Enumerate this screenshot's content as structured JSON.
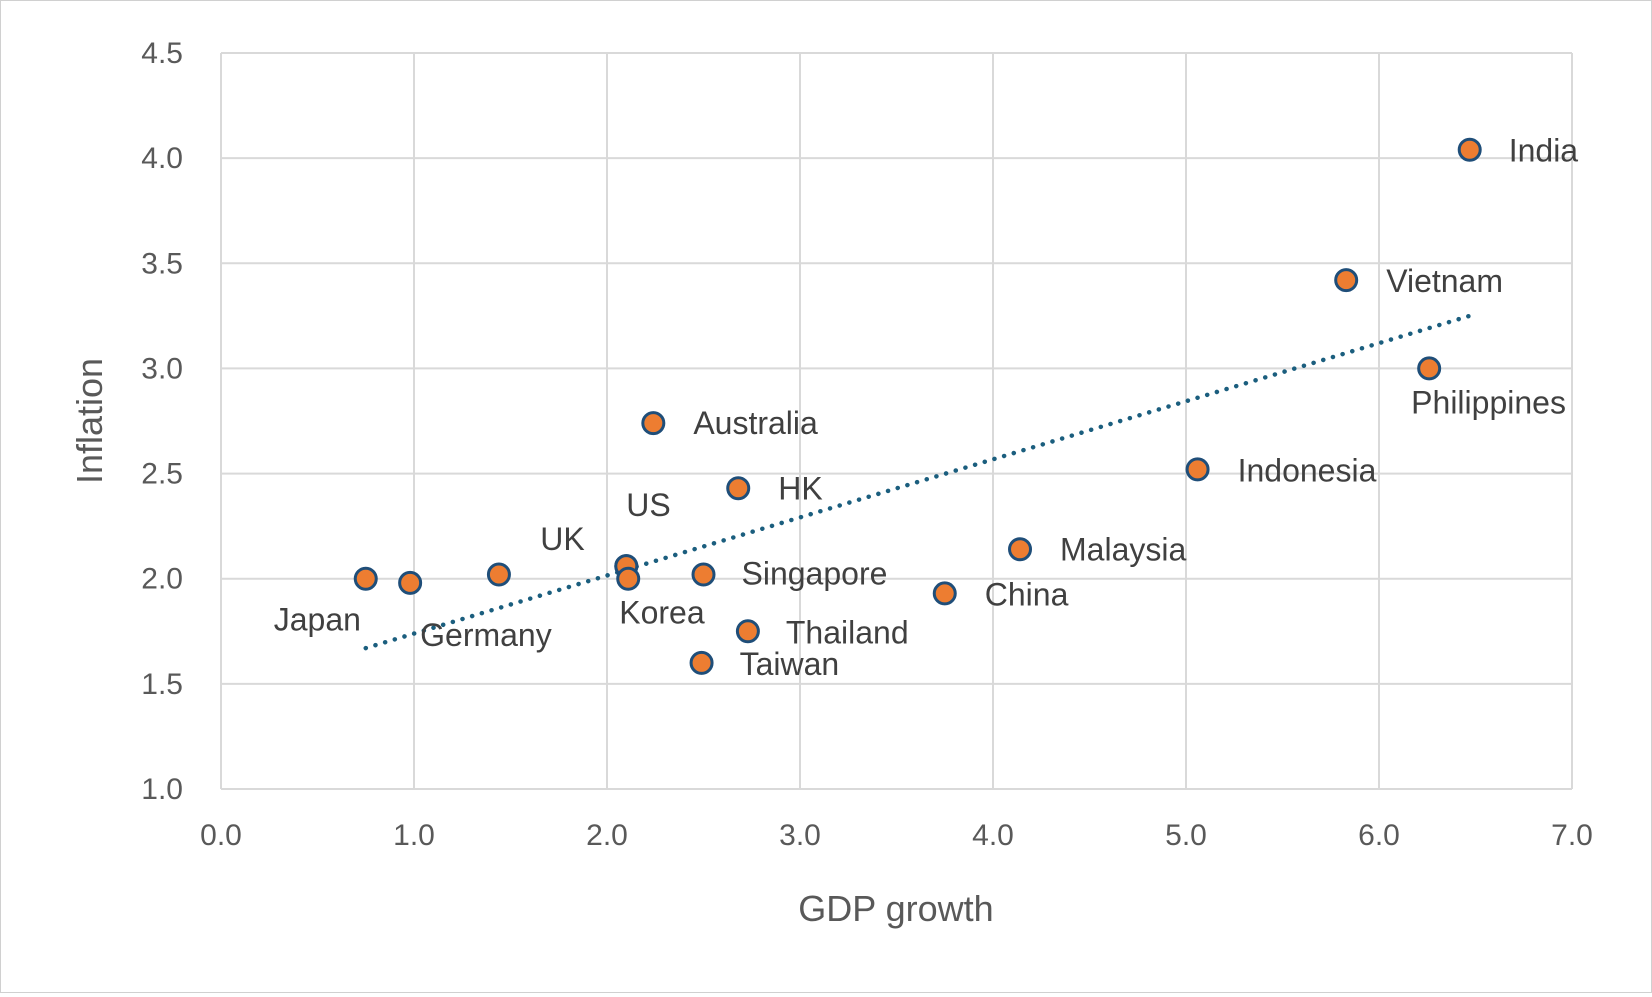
{
  "chart_data": {
    "type": "scatter",
    "title": "",
    "xlabel": "GDP growth",
    "ylabel": "Inflation",
    "xlim": [
      0.0,
      7.0
    ],
    "ylim": [
      1.0,
      4.5
    ],
    "x_ticks": [
      "0.0",
      "1.0",
      "2.0",
      "3.0",
      "4.0",
      "5.0",
      "6.0",
      "7.0"
    ],
    "y_ticks": [
      "1.0",
      "1.5",
      "2.0",
      "2.5",
      "3.0",
      "3.5",
      "4.0",
      "4.5"
    ],
    "grid": true,
    "legend": "none",
    "points": [
      {
        "label": "Japan",
        "x": 0.75,
        "y": 2.0
      },
      {
        "label": "Germany",
        "x": 0.98,
        "y": 1.98
      },
      {
        "label": "",
        "x": 1.44,
        "y": 2.02
      },
      {
        "label": "UK",
        "x": 2.1,
        "y": 2.06
      },
      {
        "label": "US",
        "x": 2.1,
        "y": 2.06
      },
      {
        "label": "Korea",
        "x": 2.11,
        "y": 2.0
      },
      {
        "label": "Australia",
        "x": 2.24,
        "y": 2.74
      },
      {
        "label": "Singapore",
        "x": 2.5,
        "y": 2.02
      },
      {
        "label": "Taiwan",
        "x": 2.49,
        "y": 1.6
      },
      {
        "label": "HK",
        "x": 2.68,
        "y": 2.43
      },
      {
        "label": "Thailand",
        "x": 2.73,
        "y": 1.75
      },
      {
        "label": "China",
        "x": 3.75,
        "y": 1.93
      },
      {
        "label": "Malaysia",
        "x": 4.14,
        "y": 2.14
      },
      {
        "label": "Indonesia",
        "x": 5.06,
        "y": 2.52
      },
      {
        "label": "Vietnam",
        "x": 5.83,
        "y": 3.42
      },
      {
        "label": "Philippines",
        "x": 6.26,
        "y": 3.0
      },
      {
        "label": "India",
        "x": 6.47,
        "y": 4.04
      }
    ],
    "trendline": {
      "style": "dotted",
      "type": "linear",
      "start": {
        "x": 0.75,
        "y": 1.67
      },
      "end": {
        "x": 6.47,
        "y": 3.25
      }
    },
    "colors": {
      "marker_fill": "#ED7D31",
      "marker_stroke": "#1F4E79",
      "trendline": "#1B5E7E"
    }
  }
}
